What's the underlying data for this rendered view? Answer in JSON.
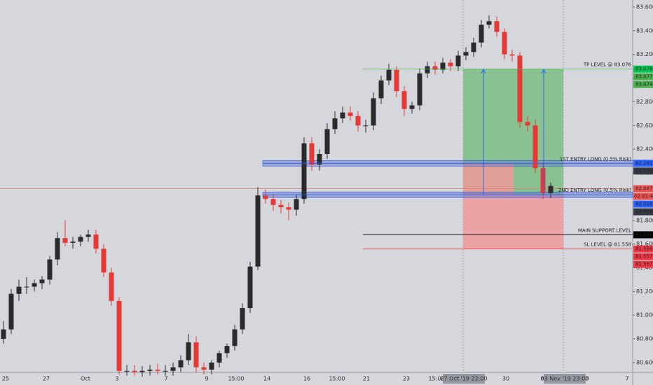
{
  "chart_data": {
    "type": "candlestick",
    "ylim": [
      80.517,
      83.659
    ],
    "yticks": [
      {
        "value": 80.6,
        "label": "80.600"
      },
      {
        "value": 80.8,
        "label": "80.800"
      },
      {
        "value": 81.0,
        "label": "81.000"
      },
      {
        "value": 81.2,
        "label": "81.200"
      },
      {
        "value": 81.4,
        "label": "81.400"
      },
      {
        "value": 81.6,
        "label": "81.600"
      },
      {
        "value": 81.8,
        "label": "81.800"
      },
      {
        "value": 82.0,
        "label": "82.000"
      },
      {
        "value": 82.2,
        "label": "82.200"
      },
      {
        "value": 82.4,
        "label": "82.400"
      },
      {
        "value": 82.6,
        "label": "82.600"
      },
      {
        "value": 82.8,
        "label": "82.800"
      },
      {
        "value": 83.0,
        "label": "83.000"
      },
      {
        "value": 83.2,
        "label": "83.200"
      },
      {
        "value": 83.4,
        "label": "83.400"
      },
      {
        "value": 83.6,
        "label": "83.600"
      }
    ],
    "x_labels": [
      "25",
      "27",
      "Oct",
      "3",
      "7",
      "9",
      "15:00",
      "14",
      "16",
      "15:00",
      "21",
      "23",
      "15:00",
      "27 Oct '19  22:00",
      "30",
      "Nov",
      "03 Nov '19  23:00",
      "5",
      "7"
    ],
    "up_color": "#2b2b2b",
    "down_color": "#e53935",
    "open": [
      80.8,
      80.88,
      81.18,
      81.24,
      81.24,
      81.27,
      81.3,
      81.47,
      81.65,
      81.61,
      81.62,
      81.66,
      81.68,
      81.56,
      81.36,
      81.12,
      80.53,
      80.53,
      80.52,
      80.53,
      80.54,
      80.53,
      80.53,
      80.56,
      80.62,
      80.77,
      80.56,
      80.54,
      80.6,
      80.68,
      80.74,
      80.88,
      81.06,
      81.41,
      82.01,
      81.98,
      81.93,
      81.91,
      81.89,
      81.98,
      82.45,
      82.27,
      82.36,
      82.57,
      82.66,
      82.71,
      82.68,
      82.6,
      82.6,
      82.83,
      82.98,
      83.07,
      82.89,
      82.74,
      82.77,
      83.04,
      83.1,
      83.07,
      83.13,
      83.1,
      83.19,
      83.22,
      83.3,
      83.45,
      83.48,
      83.39,
      83.2,
      83.19,
      82.63,
      82.6,
      82.24,
      82.03
    ],
    "high": [
      80.95,
      81.22,
      81.3,
      81.32,
      81.3,
      81.33,
      81.5,
      81.7,
      81.8,
      81.66,
      81.68,
      81.72,
      81.72,
      81.6,
      81.4,
      81.15,
      80.58,
      80.58,
      80.57,
      80.58,
      80.59,
      80.58,
      80.6,
      80.66,
      80.84,
      80.82,
      80.6,
      80.62,
      80.7,
      80.76,
      80.92,
      81.1,
      81.45,
      82.08,
      82.06,
      82.02,
      81.97,
      81.95,
      82.02,
      82.5,
      82.5,
      82.4,
      82.62,
      82.72,
      82.76,
      82.76,
      82.72,
      82.65,
      82.88,
      83.02,
      83.12,
      83.1,
      82.93,
      82.8,
      83.08,
      83.14,
      83.14,
      83.17,
      83.16,
      83.23,
      83.26,
      83.34,
      83.49,
      83.53,
      83.52,
      83.42,
      83.24,
      83.22,
      82.68,
      82.65,
      82.28,
      82.12
    ],
    "low": [
      80.76,
      80.84,
      81.12,
      81.18,
      81.2,
      81.22,
      81.26,
      81.42,
      81.58,
      81.56,
      81.58,
      81.62,
      81.52,
      81.32,
      81.08,
      80.5,
      80.49,
      80.49,
      80.48,
      80.49,
      80.5,
      80.49,
      80.49,
      80.52,
      80.58,
      80.52,
      80.5,
      80.5,
      80.56,
      80.64,
      80.7,
      80.84,
      81.02,
      81.38,
      81.94,
      81.88,
      81.86,
      81.8,
      81.84,
      81.94,
      82.22,
      82.22,
      82.32,
      82.53,
      82.62,
      82.64,
      82.55,
      82.54,
      82.56,
      82.78,
      82.94,
      82.84,
      82.68,
      82.7,
      82.73,
      83.0,
      83.03,
      83.04,
      83.06,
      83.06,
      83.15,
      83.18,
      83.26,
      83.42,
      83.35,
      83.16,
      83.14,
      82.58,
      82.55,
      82.2,
      81.98,
      81.99
    ],
    "close": [
      80.88,
      81.18,
      81.24,
      81.24,
      81.27,
      81.3,
      81.47,
      81.65,
      81.61,
      81.62,
      81.66,
      81.68,
      81.56,
      81.36,
      81.12,
      80.53,
      80.53,
      80.52,
      80.53,
      80.54,
      80.53,
      80.53,
      80.56,
      80.62,
      80.77,
      80.56,
      80.54,
      80.6,
      80.68,
      80.74,
      80.88,
      81.06,
      81.41,
      82.01,
      81.98,
      81.93,
      81.91,
      81.89,
      81.98,
      82.45,
      82.27,
      82.36,
      82.57,
      82.66,
      82.71,
      82.68,
      82.6,
      82.6,
      82.83,
      82.98,
      83.07,
      82.89,
      82.74,
      82.77,
      83.04,
      83.1,
      83.07,
      83.13,
      83.1,
      83.19,
      83.22,
      83.3,
      83.45,
      83.48,
      83.39,
      83.2,
      83.19,
      82.63,
      82.6,
      82.24,
      82.03,
      82.09
    ],
    "levels": [
      {
        "label": "TP LEVEL @ 83.076",
        "price": 83.076,
        "color": "#4caf50"
      },
      {
        "label": "1ST ENTRY LONG (0.5% Risk)",
        "price": 82.281,
        "color": "#2962ff"
      },
      {
        "label": "2ND ENTRY LONG (0.5% Risk)",
        "price": 82.016,
        "color": "#2962ff"
      },
      {
        "label": "MAIN SUPPORT LEVEL",
        "price": 81.678,
        "color": "#000000"
      },
      {
        "label": "SL LEVEL @ 81.558",
        "price": 81.558,
        "color": "#e53935"
      }
    ],
    "current_price": 82.067,
    "countdown": "02:01:42",
    "price_tags": [
      {
        "value": 83.076,
        "color": "#00c853"
      },
      {
        "value": 83.077,
        "color": "#4caf50"
      },
      {
        "value": 83.074,
        "color": "#4caf50"
      },
      {
        "value": 82.281,
        "color": "#2962ff"
      },
      {
        "value": 82.279,
        "color": "#363a45"
      },
      {
        "value": 82.067,
        "color": "#ef5350"
      },
      {
        "value": 82.016,
        "color": "#2962ff"
      },
      {
        "value": 82.016,
        "color": "#363a45"
      },
      {
        "value": 81.678,
        "color": "#000000"
      },
      {
        "value": 81.558,
        "color": "#f23645"
      },
      {
        "value": 81.557,
        "color": "#f23645"
      },
      {
        "value": 81.557,
        "color": "#f23645"
      }
    ]
  }
}
